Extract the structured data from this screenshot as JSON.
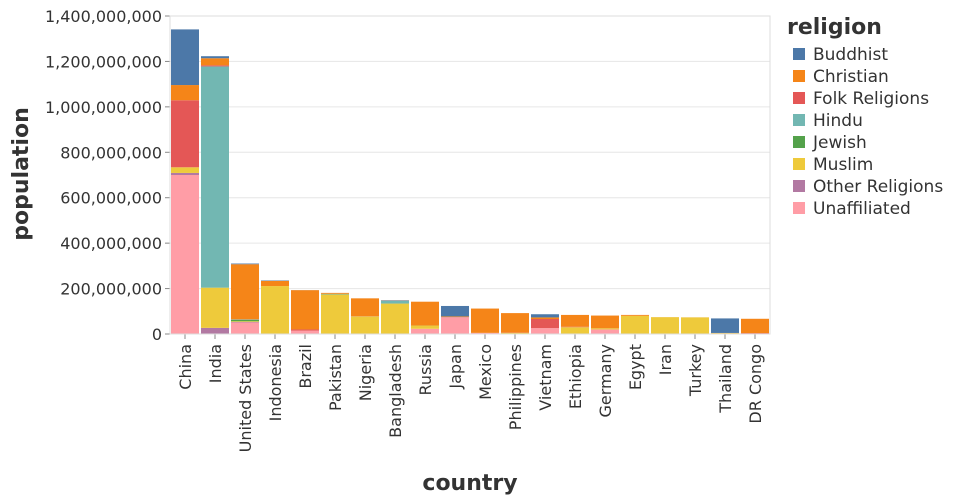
{
  "chart_data": {
    "type": "bar",
    "stacked": true,
    "xlabel": "country",
    "ylabel": "population",
    "ylim": [
      0,
      1400000000
    ],
    "yticks": [
      0,
      200000000,
      400000000,
      600000000,
      800000000,
      1000000000,
      1200000000,
      1400000000
    ],
    "ytick_labels": [
      "0",
      "200,000,000",
      "400,000,000",
      "600,000,000",
      "800,000,000",
      "1,000,000,000",
      "1,200,000,000",
      "1,400,000,000"
    ],
    "grid": true,
    "legend_title": "religion",
    "legend_position": "right",
    "categories": [
      "China",
      "India",
      "United States",
      "Indonesia",
      "Brazil",
      "Pakistan",
      "Nigeria",
      "Bangladesh",
      "Russia",
      "Japan",
      "Mexico",
      "Philippines",
      "Vietnam",
      "Ethiopia",
      "Germany",
      "Egypt",
      "Iran",
      "Turkey",
      "Thailand",
      "DR Congo"
    ],
    "stack_order": [
      "Unaffiliated",
      "Other Religions",
      "Muslim",
      "Jewish",
      "Hindu",
      "Folk Religions",
      "Christian",
      "Buddhist"
    ],
    "series": [
      {
        "name": "Buddhist",
        "color": "#4c78a8",
        "values": [
          245000000,
          9000000,
          3000000,
          2000000,
          200000,
          0,
          0,
          1000000,
          0,
          46000000,
          0,
          0,
          14000000,
          0,
          0,
          0,
          0,
          0,
          64000000,
          0
        ]
      },
      {
        "name": "Christian",
        "color": "#f58518",
        "values": [
          67000000,
          31000000,
          243000000,
          23000000,
          173000000,
          4000000,
          78000000,
          300000,
          105000000,
          3000000,
          107000000,
          86000000,
          7000000,
          52000000,
          56000000,
          4000000,
          300000,
          300000,
          600000,
          63000000
        ]
      },
      {
        "name": "Folk Religions",
        "color": "#e45756",
        "values": [
          295000000,
          5000000,
          200000,
          0,
          5000000,
          0,
          1000000,
          1000000,
          0,
          400000,
          0,
          1000000,
          40000000,
          2000000,
          0,
          0,
          0,
          0,
          0,
          2000000
        ]
      },
      {
        "name": "Hindu",
        "color": "#72b7b2",
        "values": [
          0,
          974000000,
          2000000,
          0,
          0,
          3000000,
          0,
          13000000,
          0,
          0,
          0,
          0,
          0,
          0,
          0,
          0,
          0,
          0,
          0,
          0
        ]
      },
      {
        "name": "Jewish",
        "color": "#54a24b",
        "values": [
          0,
          0,
          6000000,
          0,
          0,
          0,
          0,
          0,
          200000,
          0,
          0,
          0,
          0,
          0,
          200000,
          0,
          0,
          0,
          0,
          0
        ]
      },
      {
        "name": "Muslim",
        "color": "#eeca3b",
        "values": [
          25000000,
          177000000,
          3000000,
          210000000,
          0,
          174000000,
          77000000,
          134000000,
          14000000,
          0,
          0,
          5000000,
          0,
          30000000,
          5000000,
          80000000,
          74000000,
          73000000,
          4000000,
          1000000
        ]
      },
      {
        "name": "Other Religions",
        "color": "#b279a2",
        "values": [
          9000000,
          27000000,
          2000000,
          1000000,
          0,
          0,
          1000000,
          0,
          0,
          1000000,
          0,
          0,
          0,
          0,
          0,
          0,
          0,
          0,
          0,
          0
        ]
      },
      {
        "name": "Unaffiliated",
        "color": "#ff9da6",
        "values": [
          700000000,
          0,
          51000000,
          0,
          15000000,
          0,
          0,
          0,
          23000000,
          73000000,
          5000000,
          0,
          26000000,
          0,
          20000000,
          0,
          0,
          0,
          0,
          1000000
        ]
      }
    ]
  }
}
